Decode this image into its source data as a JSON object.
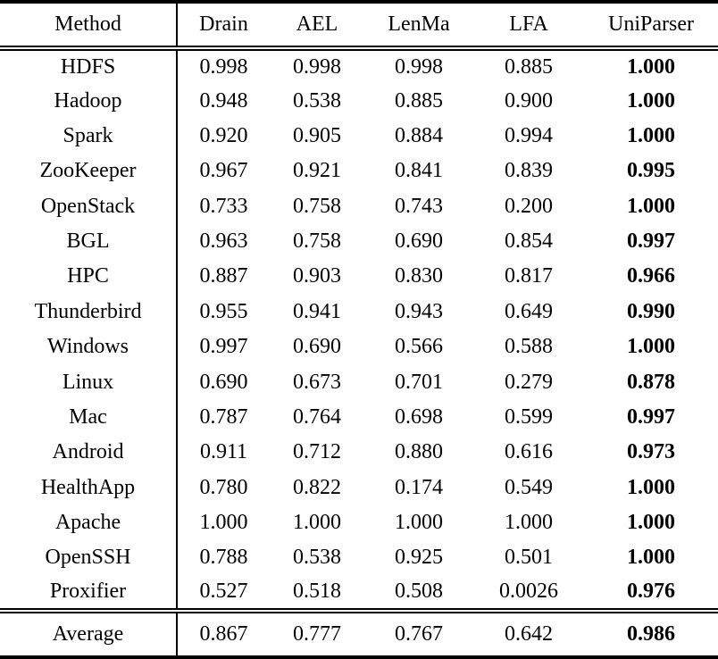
{
  "colors": {
    "background": "#ffffff",
    "text": "#000000",
    "rule": "#000000"
  },
  "table": {
    "columns": [
      "Method",
      "Drain",
      "AEL",
      "LenMa",
      "LFA",
      "UniParser"
    ],
    "bold_column": "UniParser",
    "rows": [
      [
        "HDFS",
        "0.998",
        "0.998",
        "0.998",
        "0.885",
        "1.000"
      ],
      [
        "Hadoop",
        "0.948",
        "0.538",
        "0.885",
        "0.900",
        "1.000"
      ],
      [
        "Spark",
        "0.920",
        "0.905",
        "0.884",
        "0.994",
        "1.000"
      ],
      [
        "ZooKeeper",
        "0.967",
        "0.921",
        "0.841",
        "0.839",
        "0.995"
      ],
      [
        "OpenStack",
        "0.733",
        "0.758",
        "0.743",
        "0.200",
        "1.000"
      ],
      [
        "BGL",
        "0.963",
        "0.758",
        "0.690",
        "0.854",
        "0.997"
      ],
      [
        "HPC",
        "0.887",
        "0.903",
        "0.830",
        "0.817",
        "0.966"
      ],
      [
        "Thunderbird",
        "0.955",
        "0.941",
        "0.943",
        "0.649",
        "0.990"
      ],
      [
        "Windows",
        "0.997",
        "0.690",
        "0.566",
        "0.588",
        "1.000"
      ],
      [
        "Linux",
        "0.690",
        "0.673",
        "0.701",
        "0.279",
        "0.878"
      ],
      [
        "Mac",
        "0.787",
        "0.764",
        "0.698",
        "0.599",
        "0.997"
      ],
      [
        "Android",
        "0.911",
        "0.712",
        "0.880",
        "0.616",
        "0.973"
      ],
      [
        "HealthApp",
        "0.780",
        "0.822",
        "0.174",
        "0.549",
        "1.000"
      ],
      [
        "Apache",
        "1.000",
        "1.000",
        "1.000",
        "1.000",
        "1.000"
      ],
      [
        "OpenSSH",
        "0.788",
        "0.538",
        "0.925",
        "0.501",
        "1.000"
      ],
      [
        "Proxifier",
        "0.527",
        "0.518",
        "0.508",
        "0.0026",
        "0.976"
      ]
    ],
    "footer": [
      "Average",
      "0.867",
      "0.777",
      "0.767",
      "0.642",
      "0.986"
    ]
  }
}
